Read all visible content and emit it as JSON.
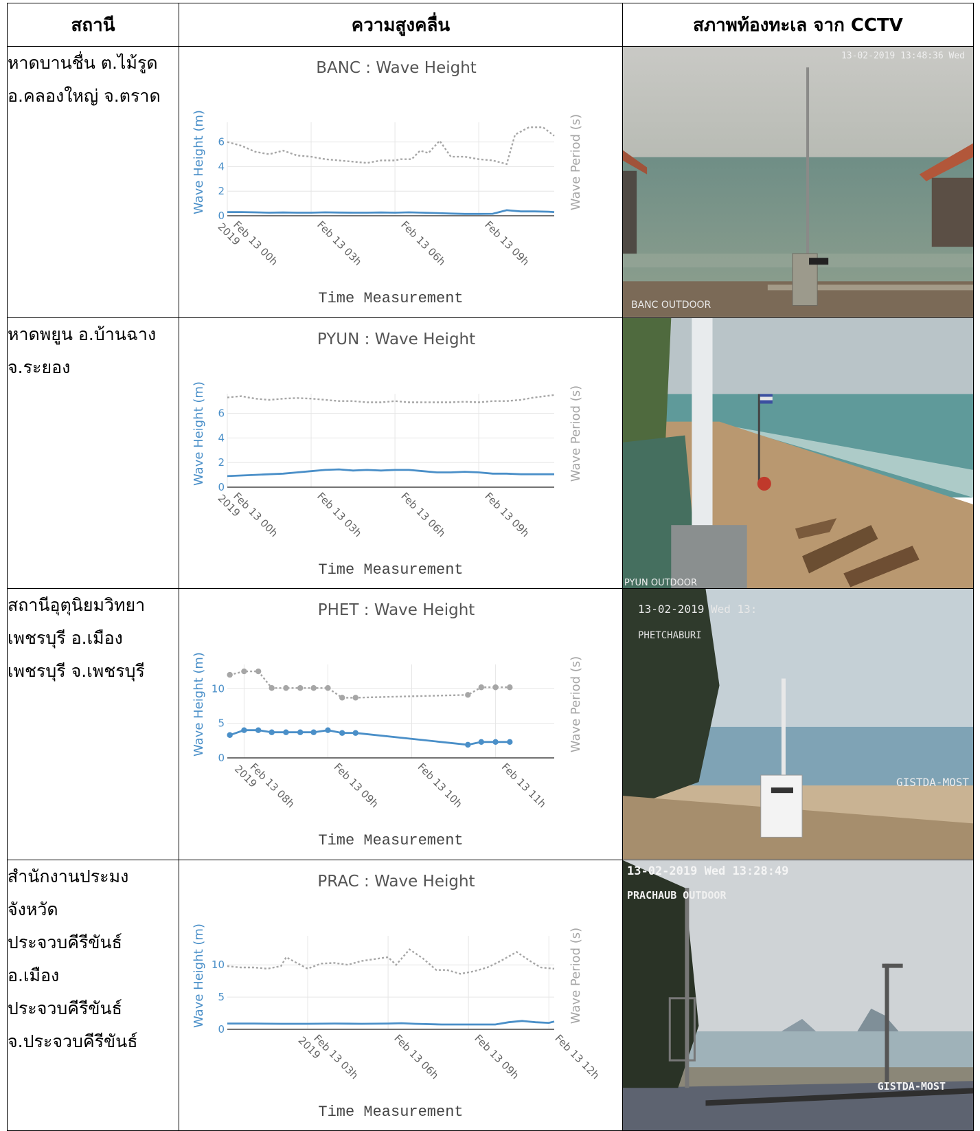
{
  "table": {
    "headers": [
      "สถานี",
      "ความสูงคลื่น",
      "สภาพท้องทะเล จาก CCTV"
    ]
  },
  "rows": [
    {
      "station_lines": [
        "หาดบานชื่น ต.ไม้รูด",
        "อ.คลองใหญ่ จ.ตราด"
      ],
      "cctv": {
        "timestamp": "13-02-2019 13:48:36 Wed",
        "label": "BANC OUTDOOR",
        "extra": ""
      }
    },
    {
      "station_lines": [
        "หาดพยูน อ.บ้านฉาง",
        "จ.ระยอง"
      ],
      "cctv": {
        "timestamp": "",
        "label": "PYUN OUTDOOR",
        "extra": ""
      }
    },
    {
      "station_lines": [
        "สถานีอุตุนิยมวิทยา",
        "เพชรบุรี อ.เมือง",
        "เพชรบุรี จ.เพชรบุรี"
      ],
      "cctv": {
        "timestamp": "13-02-2019 Wed 13:",
        "label": "PHETCHABURI",
        "extra": "GISTDA-MOST"
      }
    },
    {
      "station_lines": [
        "สำนักงานประมง",
        "จังหวัด",
        "ประจวบคีรีขันธ์",
        "อ.เมือง",
        "ประจวบคีรีขันธ์",
        "จ.ประจวบคีรีขันธ์"
      ],
      "cctv": {
        "timestamp": "13-02-2019 Wed 13:28:49",
        "label": "PRACHAUB OUTDOOR",
        "extra": "GISTDA-MOST"
      }
    }
  ],
  "colors": {
    "height_series": "#4a8fc8",
    "period_series": "#a6a6a6",
    "grid": "#e6e6e6",
    "axis": "#444444"
  },
  "chart_data": [
    {
      "type": "line",
      "title": "BANC : Wave Height",
      "xlabel": "Time Measurement",
      "ylabel_left": "Wave Height (m)",
      "ylabel_right": "Wave Period (s)",
      "x_tick_labels": [
        "Feb 13 00h 2019",
        "Feb 13 03h",
        "Feb 13 06h",
        "Feb 13 09h"
      ],
      "x_tick_hours": [
        0,
        3,
        6,
        9
      ],
      "x_range": [
        0,
        11.7
      ],
      "ylim": [
        0,
        7.6
      ],
      "y_ticks": [
        0,
        2,
        4,
        6
      ],
      "markers": false,
      "grid": true,
      "series": [
        {
          "name": "Wave Height (m)",
          "axis": "left",
          "x": [
            0,
            0.5,
            1,
            1.5,
            2,
            2.5,
            3,
            3.5,
            4,
            4.5,
            5,
            5.5,
            6,
            6.5,
            7,
            7.5,
            8,
            8.5,
            9,
            9.5,
            10,
            10.5,
            11,
            11.5,
            11.7
          ],
          "values": [
            0.3,
            0.3,
            0.28,
            0.25,
            0.27,
            0.25,
            0.25,
            0.28,
            0.26,
            0.25,
            0.25,
            0.27,
            0.25,
            0.28,
            0.25,
            0.22,
            0.18,
            0.15,
            0.15,
            0.16,
            0.45,
            0.35,
            0.35,
            0.33,
            0.3
          ]
        },
        {
          "name": "Wave Period (s)",
          "axis": "right",
          "x": [
            0,
            0.5,
            1,
            1.5,
            2,
            2.5,
            3,
            3.5,
            4,
            4.5,
            5,
            5.5,
            6,
            6.2,
            6.6,
            6.9,
            7.2,
            7.6,
            8,
            8.5,
            9,
            9.5,
            10,
            10.3,
            10.8,
            11.3,
            11.7
          ],
          "values": [
            6.0,
            5.7,
            5.2,
            5.0,
            5.3,
            4.9,
            4.8,
            4.6,
            4.5,
            4.4,
            4.3,
            4.5,
            4.5,
            4.6,
            4.6,
            5.3,
            5.1,
            6.1,
            4.8,
            4.8,
            4.6,
            4.5,
            4.2,
            6.6,
            7.2,
            7.2,
            6.5
          ]
        }
      ]
    },
    {
      "type": "line",
      "title": "PYUN : Wave Height",
      "xlabel": "Time Measurement",
      "ylabel_left": "Wave Height (m)",
      "ylabel_right": "Wave Period (s)",
      "x_tick_labels": [
        "Feb 13 00h 2019",
        "Feb 13 03h",
        "Feb 13 06h",
        "Feb 13 09h"
      ],
      "x_tick_hours": [
        0,
        3,
        6,
        9
      ],
      "x_range": [
        0,
        11.7
      ],
      "ylim": [
        0,
        7.6
      ],
      "y_ticks": [
        0,
        2,
        4,
        6
      ],
      "markers": false,
      "grid": true,
      "series": [
        {
          "name": "Wave Height (m)",
          "axis": "left",
          "x": [
            0,
            0.5,
            1,
            1.5,
            2,
            2.5,
            3,
            3.5,
            4,
            4.5,
            5,
            5.5,
            6,
            6.5,
            7,
            7.5,
            8,
            8.5,
            9,
            9.5,
            10,
            10.5,
            11,
            11.7
          ],
          "values": [
            0.9,
            0.95,
            1.0,
            1.05,
            1.1,
            1.2,
            1.3,
            1.4,
            1.45,
            1.35,
            1.4,
            1.35,
            1.4,
            1.4,
            1.3,
            1.2,
            1.2,
            1.25,
            1.2,
            1.1,
            1.1,
            1.05,
            1.05,
            1.05
          ]
        },
        {
          "name": "Wave Period (s)",
          "axis": "right",
          "x": [
            0,
            0.5,
            1,
            1.5,
            2,
            2.5,
            3,
            3.5,
            4,
            4.5,
            5,
            5.5,
            6,
            6.5,
            7,
            7.5,
            8,
            8.5,
            9,
            9.5,
            10,
            10.5,
            11,
            11.7
          ],
          "values": [
            7.3,
            7.4,
            7.2,
            7.1,
            7.2,
            7.25,
            7.2,
            7.1,
            7.0,
            7.0,
            6.9,
            6.9,
            7.0,
            6.9,
            6.9,
            6.9,
            6.9,
            6.95,
            6.9,
            7.0,
            7.0,
            7.1,
            7.3,
            7.5
          ]
        }
      ]
    },
    {
      "type": "line",
      "title": "PHET : Wave Height",
      "xlabel": "Time Measurement",
      "ylabel_left": "Wave Height (m)",
      "ylabel_right": "Wave Period (s)",
      "x_tick_labels": [
        "Feb 13 08h 2019",
        "Feb 13 09h",
        "Feb 13 10h",
        "Feb 13 11h"
      ],
      "x_tick_hours": [
        8,
        9,
        10,
        11
      ],
      "x_range": [
        7.8,
        11.7
      ],
      "ylim": [
        0,
        13.5
      ],
      "y_ticks": [
        0,
        5,
        10
      ],
      "markers": true,
      "grid": true,
      "series": [
        {
          "name": "Wave Height (m)",
          "axis": "left",
          "x": [
            7.83,
            8.0,
            8.17,
            8.33,
            8.5,
            8.67,
            8.83,
            9.0,
            9.17,
            9.33,
            10.67,
            10.83,
            11.0,
            11.17
          ],
          "values": [
            3.3,
            4.0,
            4.0,
            3.7,
            3.7,
            3.7,
            3.7,
            4.0,
            3.6,
            3.6,
            1.9,
            2.3,
            2.3,
            2.3
          ]
        },
        {
          "name": "Wave Period (s)",
          "axis": "right",
          "x": [
            7.83,
            8.0,
            8.17,
            8.33,
            8.5,
            8.67,
            8.83,
            9.0,
            9.17,
            9.33,
            10.67,
            10.83,
            11.0,
            11.17
          ],
          "values": [
            12.0,
            12.5,
            12.5,
            10.1,
            10.1,
            10.1,
            10.1,
            10.1,
            8.7,
            8.7,
            9.1,
            10.2,
            10.2,
            10.2
          ]
        }
      ]
    },
    {
      "type": "line",
      "title": "PRAC : Wave Height",
      "xlabel": "Time Measurement",
      "ylabel_left": "Wave Height (m)",
      "ylabel_right": "Wave Period (s)",
      "x_tick_labels": [
        "Feb 13 03h 2019",
        "Feb 13 06h",
        "Feb 13 09h",
        "Feb 13 12h"
      ],
      "x_tick_hours": [
        3,
        6,
        9,
        12
      ],
      "x_range": [
        0,
        12.2
      ],
      "ylim": [
        0,
        14.5
      ],
      "y_ticks": [
        0,
        5,
        10
      ],
      "markers": false,
      "grid": true,
      "series": [
        {
          "name": "Wave Height (m)",
          "axis": "left",
          "x": [
            0,
            1,
            2,
            3,
            4,
            5,
            6,
            6.5,
            7,
            8,
            9,
            10,
            10.5,
            11,
            11.5,
            12,
            12.2
          ],
          "values": [
            0.9,
            0.9,
            0.85,
            0.85,
            0.9,
            0.85,
            0.9,
            0.95,
            0.85,
            0.75,
            0.75,
            0.75,
            1.1,
            1.3,
            1.1,
            1.0,
            1.2
          ]
        },
        {
          "name": "Wave Period (s)",
          "axis": "right",
          "x": [
            0,
            0.5,
            1,
            1.5,
            2,
            2.2,
            2.5,
            3,
            3.5,
            4,
            4.5,
            5,
            5.5,
            6,
            6.3,
            6.8,
            7.3,
            7.8,
            8.2,
            8.7,
            9.2,
            9.7,
            10.2,
            10.8,
            11.3,
            11.7,
            12.2
          ],
          "values": [
            9.8,
            9.6,
            9.6,
            9.4,
            9.8,
            11.2,
            10.5,
            9.4,
            10.2,
            10.3,
            10.0,
            10.6,
            10.9,
            11.2,
            10.0,
            12.4,
            11.0,
            9.2,
            9.2,
            8.6,
            9.0,
            9.6,
            10.6,
            12.0,
            10.6,
            9.6,
            9.4
          ]
        }
      ]
    }
  ]
}
